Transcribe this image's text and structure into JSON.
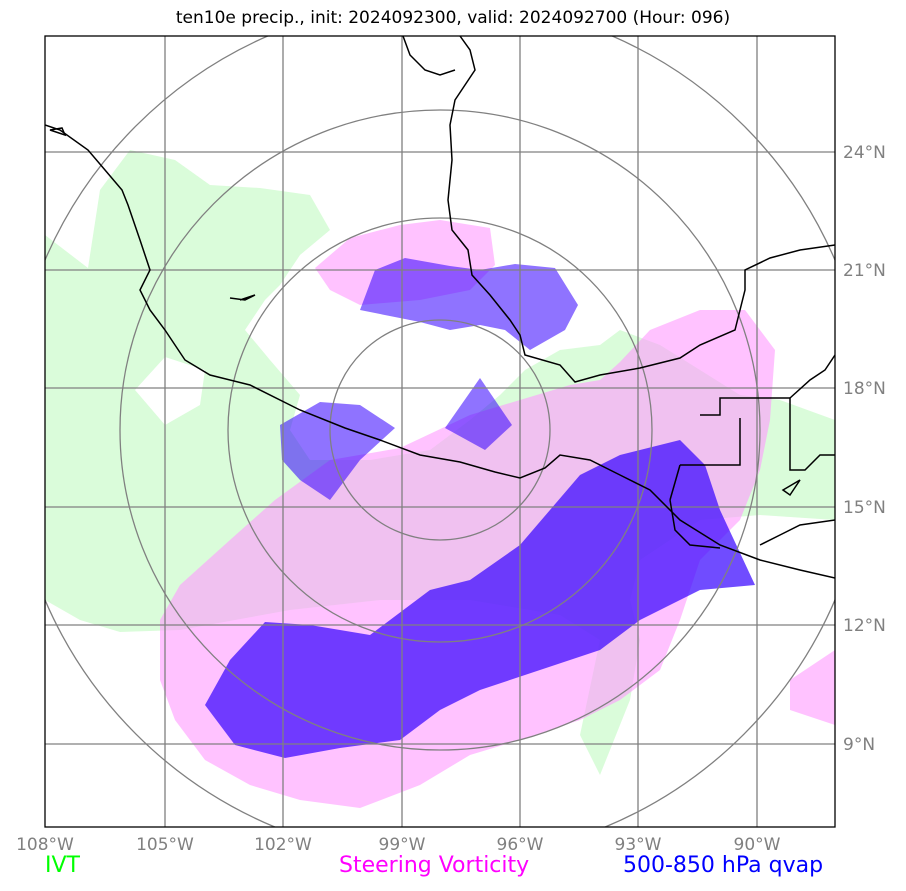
{
  "title": "ten10e precip., init: 2024092300, valid: 2024092700 (Hour: 096)",
  "map": {
    "projection": "polar-centered",
    "lon_range": [
      -108,
      -88.7
    ],
    "lat_range": [
      7,
      27
    ],
    "lon_ticks": [
      {
        "label": "108°W",
        "lon": -108
      },
      {
        "label": "105°W",
        "lon": -105
      },
      {
        "label": "102°W",
        "lon": -102
      },
      {
        "label": "99°W",
        "lon": -99
      },
      {
        "label": "96°W",
        "lon": -96
      },
      {
        "label": "93°W",
        "lon": -93
      },
      {
        "label": "90°W",
        "lon": -90
      }
    ],
    "lat_ticks": [
      {
        "label": "24°N",
        "lat": 24
      },
      {
        "label": "21°N",
        "lat": 21
      },
      {
        "label": "18°N",
        "lat": 18
      },
      {
        "label": "15°N",
        "lat": 15
      },
      {
        "label": "12°N",
        "lat": 12
      },
      {
        "label": "9°N",
        "lat": 9
      }
    ],
    "colors": {
      "ivt": "#c8ffc8",
      "steering_vorticity": "#ff99ff",
      "qvap": "#3300ff",
      "grid": "#808080",
      "coast": "#000000"
    }
  },
  "legend": {
    "ivt": {
      "label": "IVT",
      "color": "#00ff00"
    },
    "steering_vorticity": {
      "label": "Steering Vorticity",
      "color": "#ff00ff"
    },
    "qvap": {
      "label": "500-850 hPa qvap",
      "color": "#0000ff"
    }
  }
}
